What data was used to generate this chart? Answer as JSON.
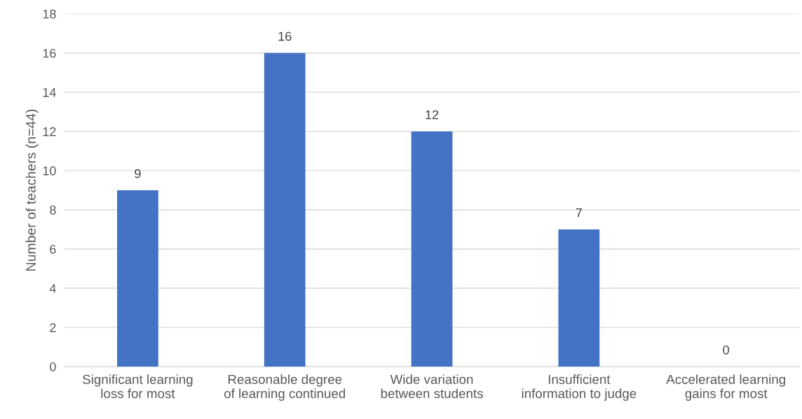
{
  "chart_data": {
    "type": "bar",
    "ylabel": "Number of teachers (n=44)",
    "categories": [
      "Significant learning\nloss for most",
      "Reasonable degree\nof learning continued",
      "Wide variation\nbetween students",
      "Insufficient\ninformation to judge",
      "Accelerated learning\ngains for most"
    ],
    "values": [
      9,
      16,
      12,
      7,
      0
    ],
    "color": "#4472c4",
    "ylim": [
      0,
      18
    ],
    "yticks": [
      0,
      2,
      4,
      6,
      8,
      10,
      12,
      14,
      16,
      18
    ],
    "grid": "y",
    "data_labels": true
  }
}
